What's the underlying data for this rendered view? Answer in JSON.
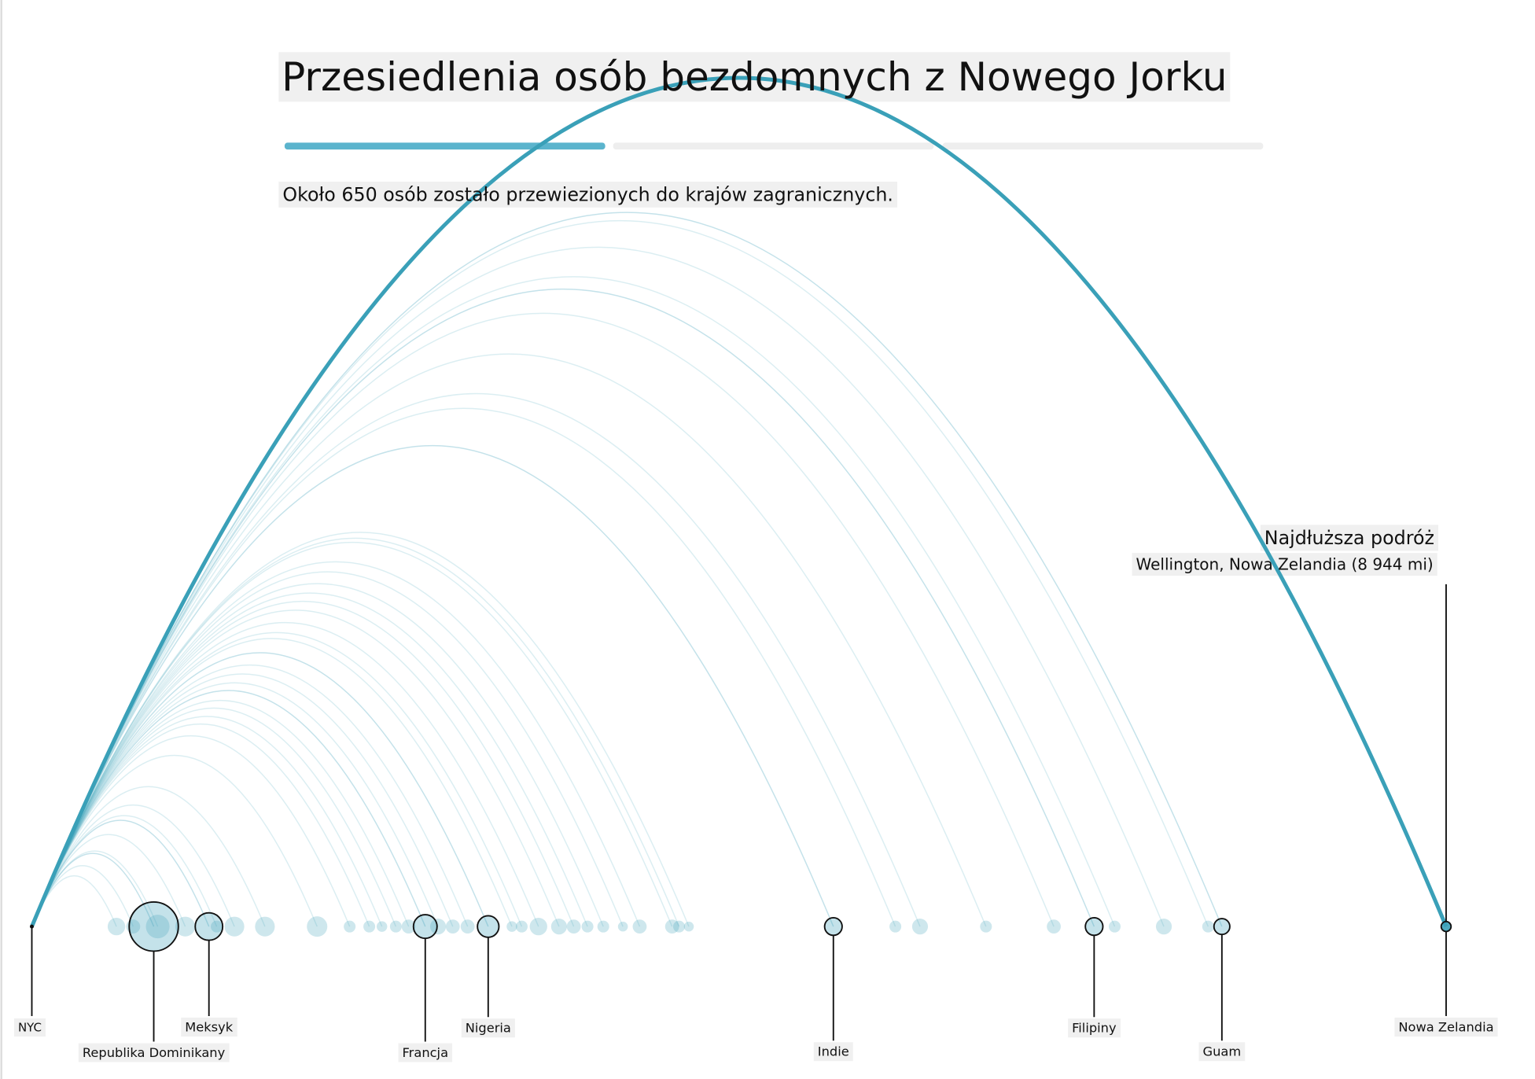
{
  "chart_data": {
    "type": "arc",
    "title": "Przesiedlenia osób bezdomnych z Nowego Jorku",
    "subtitle": "Około 650 osób zostało przewiezionych do krajów zagranicznych.",
    "annotation": {
      "title": "Najdłuższa podróż",
      "text": "Wellington, Nowa Zelandia (8 944 mi)"
    },
    "origin": "NYC",
    "xlim": [
      0,
      8944
    ],
    "color": "#3aa0b8",
    "destinations": [
      {
        "name": "Republika Dominikany",
        "distance": 771,
        "count": 173
      },
      {
        "name": "Meksyk",
        "distance": 1120,
        "count": 54
      },
      {
        "name": "Francja",
        "distance": 2488,
        "count": 40
      },
      {
        "name": "Nigeria",
        "distance": 2886,
        "count": 33
      },
      {
        "name": "Indie",
        "distance": 5069,
        "count": 22
      },
      {
        "name": "Filipiny",
        "distance": 6718,
        "count": 22
      },
      {
        "name": "Guam",
        "distance": 7526,
        "count": 18
      },
      {
        "name": "Nowa Zelandia",
        "distance": 8944,
        "count": 7
      }
    ],
    "others": {
      "distances": [
        535,
        641,
        796,
        970,
        1169,
        1281,
        1474,
        1804,
        2010,
        2134,
        2214,
        2302,
        2383,
        2569,
        2662,
        2756,
        3036,
        3098,
        3204,
        3334,
        3427,
        3514,
        3614,
        3738,
        3844,
        4049,
        4093,
        4155,
        5461,
        5617,
        6034,
        6463,
        6848,
        7159,
        7439
      ],
      "counts": [
        22,
        14,
        40,
        28,
        10,
        28,
        28,
        30,
        10,
        10,
        8,
        10,
        14,
        18,
        14,
        14,
        8,
        10,
        22,
        18,
        14,
        10,
        10,
        7,
        14,
        14,
        10,
        7,
        10,
        18,
        10,
        14,
        10,
        18,
        10
      ]
    }
  }
}
